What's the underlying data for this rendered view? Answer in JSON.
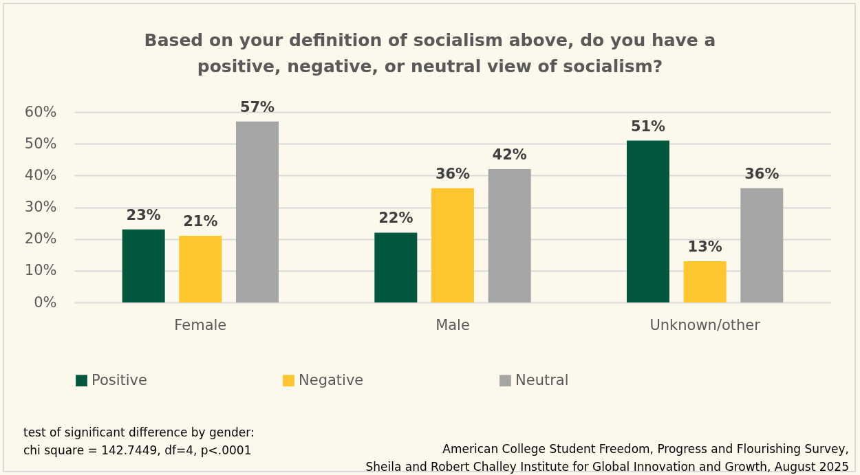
{
  "chart_data": {
    "type": "bar",
    "title": "Based on your definition of socialism above, do you have a positive, negative, or neutral view of socialism?",
    "categories": [
      "Female",
      "Male",
      "Unknown/other"
    ],
    "series": [
      {
        "name": "Positive",
        "color": "#02573f",
        "values": [
          23,
          22,
          51
        ],
        "value_labels": [
          "23%",
          "22%",
          "51%"
        ]
      },
      {
        "name": "Negative",
        "color": "#fec52e",
        "values": [
          21,
          36,
          13
        ],
        "value_labels": [
          "21%",
          "36%",
          "13%"
        ]
      },
      {
        "name": "Neutral",
        "color": "#a5a5a5",
        "values": [
          57,
          42,
          36
        ],
        "value_labels": [
          "57%",
          "42%",
          "36%"
        ]
      }
    ],
    "ylim": [
      0,
      60
    ],
    "yticks": [
      {
        "value": 0,
        "label": "0%"
      },
      {
        "value": 10,
        "label": "10%"
      },
      {
        "value": 20,
        "label": "20%"
      },
      {
        "value": 30,
        "label": "30%"
      },
      {
        "value": 40,
        "label": "40%"
      },
      {
        "value": 50,
        "label": "50%"
      },
      {
        "value": 60,
        "label": "60%"
      }
    ],
    "grid": "y",
    "legend": "bottom",
    "annotations": [
      "test of significant difference by gender:\nchi square = 142.7449, df=4, p<.0001",
      "American College Student Freedom, Progress and Flourishing Survey,\nSheila and Robert Challey Institute for Global Innovation and Growth, August 2025"
    ]
  }
}
